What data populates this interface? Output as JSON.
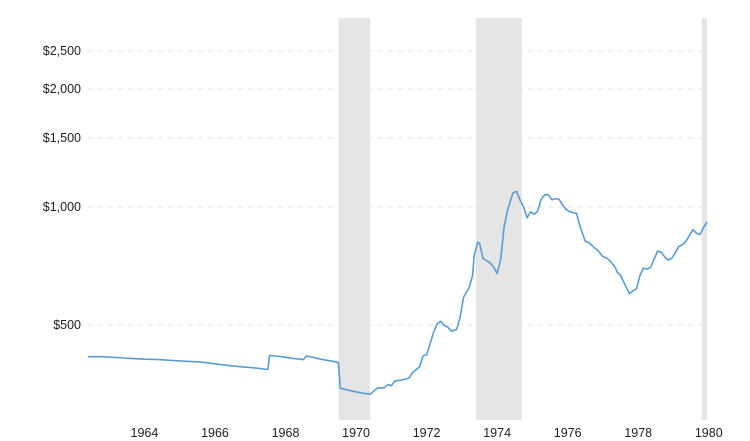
{
  "chart_data": {
    "type": "line",
    "title": "",
    "xlabel": "",
    "ylabel": "",
    "y_scale": "log",
    "xlim": [
      1962.4,
      1979.95
    ],
    "ylim": [
      300,
      2800
    ],
    "grid": true,
    "y_ticks": [
      {
        "value": 500,
        "label": "$500"
      },
      {
        "value": 1000,
        "label": "$1,000"
      },
      {
        "value": 1500,
        "label": "$1,500"
      },
      {
        "value": 2000,
        "label": "$2,000"
      },
      {
        "value": 2500,
        "label": "$2,500"
      }
    ],
    "x_ticks": [
      {
        "value": 1964,
        "label": "1964"
      },
      {
        "value": 1966,
        "label": "1966"
      },
      {
        "value": 1968,
        "label": "1968"
      },
      {
        "value": 1970,
        "label": "1970"
      },
      {
        "value": 1972,
        "label": "1972"
      },
      {
        "value": 1974,
        "label": "1974"
      },
      {
        "value": 1976,
        "label": "1976"
      },
      {
        "value": 1978,
        "label": "1978"
      },
      {
        "value": 1980,
        "label": "1980"
      }
    ],
    "recessions": [
      {
        "start": 1969.5,
        "end": 1970.4
      },
      {
        "start": 1973.4,
        "end": 1974.7
      },
      {
        "start": 1979.8,
        "end": 1979.95
      }
    ],
    "series": [
      {
        "color": "#5b9bd5",
        "points": [
          {
            "x": 1962.4,
            "y": 415
          },
          {
            "x": 1962.8,
            "y": 415
          },
          {
            "x": 1963.2,
            "y": 413
          },
          {
            "x": 1963.6,
            "y": 411
          },
          {
            "x": 1964.0,
            "y": 409
          },
          {
            "x": 1964.4,
            "y": 408
          },
          {
            "x": 1964.8,
            "y": 406
          },
          {
            "x": 1965.2,
            "y": 404
          },
          {
            "x": 1965.6,
            "y": 402
          },
          {
            "x": 1966.0,
            "y": 398
          },
          {
            "x": 1966.4,
            "y": 394
          },
          {
            "x": 1966.8,
            "y": 391
          },
          {
            "x": 1967.2,
            "y": 388
          },
          {
            "x": 1967.5,
            "y": 385
          },
          {
            "x": 1967.55,
            "y": 418
          },
          {
            "x": 1967.9,
            "y": 415
          },
          {
            "x": 1968.2,
            "y": 411
          },
          {
            "x": 1968.5,
            "y": 408
          },
          {
            "x": 1968.6,
            "y": 417
          },
          {
            "x": 1969.0,
            "y": 409
          },
          {
            "x": 1969.4,
            "y": 403
          },
          {
            "x": 1969.5,
            "y": 401
          },
          {
            "x": 1969.55,
            "y": 345
          },
          {
            "x": 1969.9,
            "y": 339
          },
          {
            "x": 1970.2,
            "y": 335
          },
          {
            "x": 1970.4,
            "y": 333
          },
          {
            "x": 1970.6,
            "y": 345
          },
          {
            "x": 1970.8,
            "y": 346
          },
          {
            "x": 1970.9,
            "y": 352
          },
          {
            "x": 1971.0,
            "y": 350
          },
          {
            "x": 1971.1,
            "y": 360
          },
          {
            "x": 1971.3,
            "y": 362
          },
          {
            "x": 1971.5,
            "y": 366
          },
          {
            "x": 1971.6,
            "y": 378
          },
          {
            "x": 1971.8,
            "y": 391
          },
          {
            "x": 1971.9,
            "y": 417
          },
          {
            "x": 1972.0,
            "y": 420
          },
          {
            "x": 1972.1,
            "y": 448
          },
          {
            "x": 1972.2,
            "y": 480
          },
          {
            "x": 1972.3,
            "y": 503
          },
          {
            "x": 1972.4,
            "y": 511
          },
          {
            "x": 1972.5,
            "y": 499
          },
          {
            "x": 1972.6,
            "y": 494
          },
          {
            "x": 1972.7,
            "y": 482
          },
          {
            "x": 1972.85,
            "y": 487
          },
          {
            "x": 1972.95,
            "y": 523
          },
          {
            "x": 1973.05,
            "y": 589
          },
          {
            "x": 1973.2,
            "y": 621
          },
          {
            "x": 1973.3,
            "y": 667
          },
          {
            "x": 1973.35,
            "y": 752
          },
          {
            "x": 1973.45,
            "y": 813
          },
          {
            "x": 1973.5,
            "y": 809
          },
          {
            "x": 1973.6,
            "y": 739
          },
          {
            "x": 1973.8,
            "y": 720
          },
          {
            "x": 1973.9,
            "y": 703
          },
          {
            "x": 1974.0,
            "y": 677
          },
          {
            "x": 1974.1,
            "y": 736
          },
          {
            "x": 1974.2,
            "y": 894
          },
          {
            "x": 1974.3,
            "y": 985
          },
          {
            "x": 1974.45,
            "y": 1087
          },
          {
            "x": 1974.55,
            "y": 1096
          },
          {
            "x": 1974.65,
            "y": 1040
          },
          {
            "x": 1974.75,
            "y": 1000
          },
          {
            "x": 1974.85,
            "y": 938
          },
          {
            "x": 1974.95,
            "y": 973
          },
          {
            "x": 1975.05,
            "y": 958
          },
          {
            "x": 1975.15,
            "y": 977
          },
          {
            "x": 1975.25,
            "y": 1048
          },
          {
            "x": 1975.35,
            "y": 1075
          },
          {
            "x": 1975.45,
            "y": 1075
          },
          {
            "x": 1975.55,
            "y": 1044
          },
          {
            "x": 1975.65,
            "y": 1049
          },
          {
            "x": 1975.75,
            "y": 1048
          },
          {
            "x": 1975.85,
            "y": 1013
          },
          {
            "x": 1975.95,
            "y": 987
          },
          {
            "x": 1976.05,
            "y": 974
          },
          {
            "x": 1976.15,
            "y": 967
          },
          {
            "x": 1976.25,
            "y": 963
          },
          {
            "x": 1976.35,
            "y": 893
          },
          {
            "x": 1976.5,
            "y": 817
          },
          {
            "x": 1976.6,
            "y": 812
          },
          {
            "x": 1976.75,
            "y": 788
          },
          {
            "x": 1976.85,
            "y": 776
          },
          {
            "x": 1977.0,
            "y": 746
          },
          {
            "x": 1977.1,
            "y": 742
          },
          {
            "x": 1977.2,
            "y": 729
          },
          {
            "x": 1977.35,
            "y": 701
          },
          {
            "x": 1977.4,
            "y": 683
          },
          {
            "x": 1977.5,
            "y": 669
          },
          {
            "x": 1977.55,
            "y": 654
          },
          {
            "x": 1977.65,
            "y": 627
          },
          {
            "x": 1977.75,
            "y": 601
          },
          {
            "x": 1977.85,
            "y": 611
          },
          {
            "x": 1977.95,
            "y": 619
          },
          {
            "x": 1978.05,
            "y": 669
          },
          {
            "x": 1978.15,
            "y": 699
          },
          {
            "x": 1978.25,
            "y": 694
          },
          {
            "x": 1978.35,
            "y": 701
          },
          {
            "x": 1978.45,
            "y": 736
          },
          {
            "x": 1978.55,
            "y": 772
          },
          {
            "x": 1978.65,
            "y": 767
          },
          {
            "x": 1978.75,
            "y": 746
          },
          {
            "x": 1978.85,
            "y": 732
          },
          {
            "x": 1978.95,
            "y": 740
          },
          {
            "x": 1979.05,
            "y": 764
          },
          {
            "x": 1979.15,
            "y": 793
          },
          {
            "x": 1979.25,
            "y": 801
          },
          {
            "x": 1979.35,
            "y": 817
          },
          {
            "x": 1979.45,
            "y": 846
          },
          {
            "x": 1979.55,
            "y": 875
          },
          {
            "x": 1979.65,
            "y": 858
          },
          {
            "x": 1979.75,
            "y": 850
          },
          {
            "x": 1979.85,
            "y": 886
          },
          {
            "x": 1979.95,
            "y": 916
          }
        ]
      }
    ]
  }
}
